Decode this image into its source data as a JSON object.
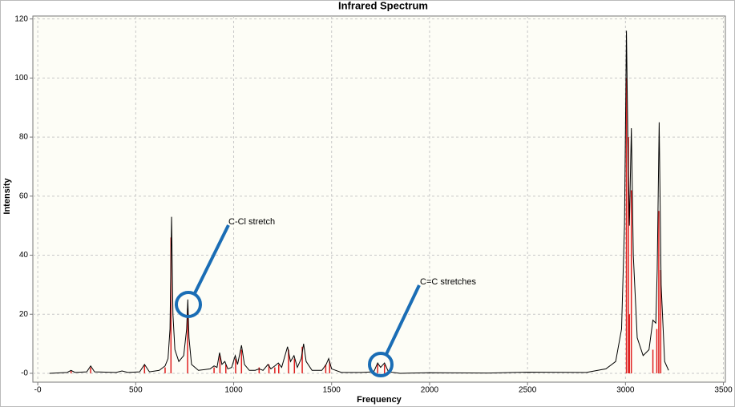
{
  "chart_data": {
    "type": "line",
    "title": "Infrared Spectrum",
    "x_label": "Frequency",
    "y_label": "Intensity",
    "xlim": [
      -25,
      3510
    ],
    "ylim": [
      -3,
      121
    ],
    "xticks": [
      {
        "value": 0,
        "label": "-0"
      },
      500,
      1000,
      1500,
      2000,
      2500,
      3000,
      3500
    ],
    "yticks": [
      {
        "value": 0,
        "label": "-0"
      },
      20,
      40,
      60,
      80,
      100,
      120
    ],
    "grid": true,
    "annotations": [
      "C-Cl stretch",
      "C=C stretches"
    ],
    "series": [
      {
        "kind": "stick",
        "color": "#e02020",
        "x": [
          170,
          270,
          545,
          650,
          680,
          765,
          900,
          930,
          960,
          1010,
          1040,
          1130,
          1180,
          1210,
          1230,
          1280,
          1310,
          1350,
          1470,
          1490,
          1735,
          1770,
          3005,
          3015,
          3020,
          3030,
          3140,
          3160,
          3170,
          3180
        ],
        "values": [
          1,
          2,
          3,
          2,
          46,
          22,
          2,
          6,
          3,
          5,
          8,
          2,
          3,
          2,
          3,
          8,
          5,
          9,
          3,
          4,
          3,
          3,
          100,
          80,
          20,
          62,
          8,
          15,
          55,
          35
        ]
      },
      {
        "kind": "line",
        "color": "#000000",
        "x": [
          60,
          150,
          170,
          190,
          250,
          270,
          290,
          400,
          430,
          460,
          520,
          545,
          570,
          620,
          650,
          665,
          675,
          683,
          690,
          700,
          720,
          745,
          760,
          766,
          772,
          785,
          820,
          880,
          900,
          915,
          928,
          940,
          955,
          970,
          990,
          1008,
          1020,
          1040,
          1055,
          1080,
          1110,
          1130,
          1150,
          1175,
          1190,
          1210,
          1228,
          1245,
          1275,
          1290,
          1308,
          1325,
          1345,
          1357,
          1370,
          1400,
          1450,
          1472,
          1485,
          1500,
          1550,
          1650,
          1715,
          1735,
          1750,
          1770,
          1790,
          1850,
          2000,
          2300,
          2500,
          2800,
          2900,
          2950,
          2980,
          2995,
          3005,
          3012,
          3020,
          3030,
          3040,
          3060,
          3090,
          3120,
          3140,
          3155,
          3162,
          3172,
          3182,
          3200,
          3220
        ],
        "values": [
          0,
          0.3,
          1,
          0.3,
          0.5,
          2.5,
          0.5,
          0.3,
          0.8,
          0.3,
          0.5,
          3,
          0.5,
          1,
          2.5,
          5,
          15,
          53,
          20,
          8,
          4,
          6,
          15,
          25,
          12,
          3,
          1,
          1.5,
          2.5,
          2,
          7,
          3,
          4,
          1.5,
          2,
          6,
          3,
          9.5,
          3,
          1,
          1,
          1.5,
          1,
          3,
          1.5,
          2.5,
          3.5,
          2,
          9,
          4,
          6,
          2,
          5,
          10,
          4,
          1,
          1,
          3,
          5,
          1.5,
          0.3,
          0.3,
          0.5,
          3.5,
          2,
          3.5,
          0.5,
          0,
          0.2,
          0.1,
          0.4,
          0.3,
          1.5,
          4,
          15,
          50,
          116,
          80,
          50,
          83,
          40,
          12,
          6,
          8,
          18,
          17,
          35,
          85,
          30,
          4,
          1
        ]
      }
    ]
  }
}
